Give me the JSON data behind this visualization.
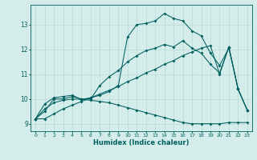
{
  "xlabel": "Humidex (Indice chaleur)",
  "background_color": "#d4ecea",
  "grid_color": "#b8d8d5",
  "line_color": "#006060",
  "xlim": [
    -0.5,
    23.5
  ],
  "ylim": [
    8.7,
    13.8
  ],
  "yticks": [
    9,
    10,
    11,
    12,
    13
  ],
  "xticks": [
    0,
    1,
    2,
    3,
    4,
    5,
    6,
    7,
    8,
    9,
    10,
    11,
    12,
    13,
    14,
    15,
    16,
    17,
    18,
    19,
    20,
    21,
    22,
    23
  ],
  "series": [
    [
      9.2,
      9.8,
      10.05,
      10.1,
      10.15,
      9.98,
      10.05,
      10.15,
      10.3,
      10.55,
      12.5,
      13.0,
      13.05,
      13.15,
      13.45,
      13.25,
      13.15,
      12.75,
      12.55,
      11.85,
      11.35,
      12.05,
      10.4,
      9.55
    ],
    [
      9.2,
      9.5,
      10.0,
      10.0,
      10.1,
      10.0,
      10.0,
      10.55,
      10.9,
      11.15,
      11.5,
      11.75,
      11.95,
      12.05,
      12.2,
      12.1,
      12.35,
      12.05,
      11.85,
      11.4,
      11.05,
      12.1,
      10.4,
      9.55
    ],
    [
      9.2,
      9.2,
      9.4,
      9.6,
      9.75,
      9.9,
      10.05,
      10.2,
      10.35,
      10.5,
      10.7,
      10.85,
      11.05,
      11.2,
      11.4,
      11.55,
      11.75,
      11.9,
      12.05,
      12.15,
      11.0,
      12.1,
      10.4,
      9.55
    ],
    [
      9.2,
      9.6,
      9.85,
      9.95,
      10.0,
      9.98,
      9.95,
      9.9,
      9.85,
      9.75,
      9.65,
      9.55,
      9.45,
      9.35,
      9.25,
      9.15,
      9.05,
      9.0,
      9.0,
      9.0,
      9.0,
      9.05,
      9.05,
      9.05
    ]
  ]
}
